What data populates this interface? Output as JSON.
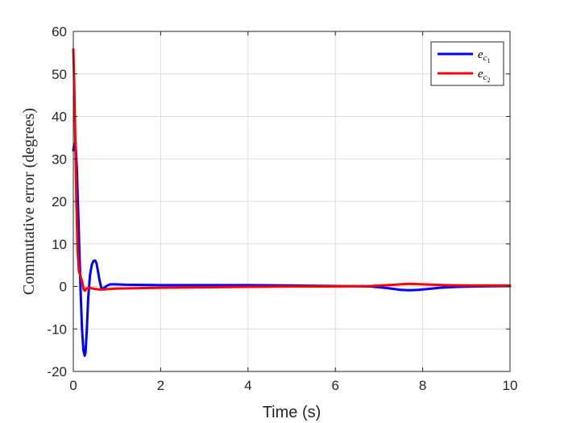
{
  "chart_data": {
    "type": "line",
    "title": "",
    "xlabel": "Time (s)",
    "ylabel": "Commutative error (degrees)",
    "xlim": [
      0,
      10
    ],
    "ylim": [
      -20,
      60
    ],
    "xticks": [
      "0",
      "2",
      "4",
      "6",
      "8",
      "10"
    ],
    "yticks": [
      "-20",
      "-10",
      "0",
      "10",
      "20",
      "30",
      "40",
      "50",
      "60"
    ],
    "grid": true,
    "legend_position": "top-right",
    "series": [
      {
        "name": "e_c1",
        "legend_base": "e",
        "legend_sub": "c",
        "legend_subsub": "1",
        "color": "#0000ff",
        "x": [
          0,
          0.02,
          0.05,
          0.08,
          0.11,
          0.14,
          0.17,
          0.2,
          0.23,
          0.26,
          0.28,
          0.31,
          0.34,
          0.38,
          0.42,
          0.46,
          0.5,
          0.53,
          0.56,
          0.6,
          0.64,
          0.68,
          0.72,
          0.78,
          0.85,
          0.95,
          1.2,
          2,
          3,
          4,
          5,
          6,
          6.8,
          7.2,
          7.5,
          7.7,
          7.9,
          8.1,
          8.4,
          8.8,
          9.2,
          10
        ],
        "y": [
          32,
          33.5,
          33.8,
          28,
          18,
          8,
          -2,
          -10,
          -15,
          -16.3,
          -15.5,
          -10,
          -3,
          2.5,
          5,
          6,
          6.1,
          5.5,
          3.8,
          1.5,
          -0.3,
          -0.6,
          -0.2,
          0.2,
          0.5,
          0.5,
          0.4,
          0.3,
          0.3,
          0.3,
          0.2,
          0.1,
          0,
          -0.4,
          -0.8,
          -0.9,
          -0.8,
          -0.6,
          -0.3,
          -0.1,
          0,
          0.1
        ]
      },
      {
        "name": "e_c2",
        "legend_base": "e",
        "legend_sub": "c",
        "legend_subsub": "2",
        "color": "#ff0000",
        "x": [
          0,
          0.02,
          0.04,
          0.07,
          0.1,
          0.13,
          0.16,
          0.2,
          0.24,
          0.27,
          0.3,
          0.35,
          0.4,
          0.5,
          0.6,
          0.7,
          0.8,
          1,
          1.5,
          2,
          3,
          4,
          5,
          6,
          6.8,
          7.2,
          7.5,
          7.7,
          8,
          8.5,
          9,
          10
        ],
        "y": [
          55.8,
          48,
          37,
          20,
          8,
          3.5,
          2.5,
          1.2,
          -0.8,
          -1,
          -0.5,
          -0.3,
          -0.4,
          -0.6,
          -0.7,
          -0.7,
          -0.6,
          -0.5,
          -0.4,
          -0.3,
          -0.2,
          -0.1,
          0,
          0,
          0.1,
          0.3,
          0.5,
          0.6,
          0.5,
          0.3,
          0.2,
          0.2
        ]
      }
    ]
  }
}
